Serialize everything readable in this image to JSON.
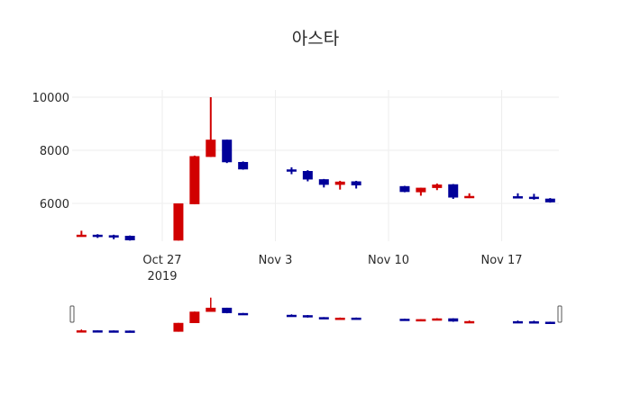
{
  "title": "아스타",
  "colors": {
    "increasing": "#d10000",
    "decreasing": "#000099",
    "grid": "#eeeeee",
    "background": "#ffffff"
  },
  "chart_data": {
    "type": "candlestick",
    "title": "아스타",
    "xlabel": "",
    "ylabel": "",
    "ylim": [
      4570,
      10000
    ],
    "y_ticks": [
      6000,
      8000,
      10000
    ],
    "x_ticks": [
      {
        "label": "Oct 27",
        "sublabel": "2019",
        "date": "2019-10-27"
      },
      {
        "label": "Nov 3",
        "date": "2019-11-03"
      },
      {
        "label": "Nov 10",
        "date": "2019-11-10"
      },
      {
        "label": "Nov 17",
        "date": "2019-11-17"
      }
    ],
    "grid": true,
    "rangeslider": true,
    "x": [
      "2019-10-22",
      "2019-10-23",
      "2019-10-24",
      "2019-10-25",
      "2019-10-28",
      "2019-10-29",
      "2019-10-30",
      "2019-10-31",
      "2019-11-01",
      "2019-11-04",
      "2019-11-05",
      "2019-11-06",
      "2019-11-07",
      "2019-11-08",
      "2019-11-11",
      "2019-11-12",
      "2019-11-13",
      "2019-11-14",
      "2019-11-15",
      "2019-11-18",
      "2019-11-19",
      "2019-11-20"
    ],
    "open": [
      4790,
      4820,
      4800,
      4780,
      4600,
      5970,
      7750,
      8400,
      7560,
      7280,
      7220,
      6910,
      6700,
      6830,
      6650,
      6420,
      6580,
      6720,
      6240,
      6270,
      6250,
      6180
    ],
    "high": [
      4970,
      4840,
      4820,
      4790,
      6000,
      7800,
      10000,
      8400,
      7580,
      7360,
      7250,
      6920,
      6850,
      6850,
      6660,
      6590,
      6750,
      6730,
      6380,
      6380,
      6360,
      6200
    ],
    "low": [
      4760,
      4700,
      4650,
      4600,
      4600,
      5970,
      7750,
      7520,
      7270,
      7100,
      6830,
      6600,
      6520,
      6560,
      6420,
      6290,
      6500,
      6170,
      6200,
      6200,
      6140,
      6030
    ],
    "close": [
      4820,
      4770,
      4770,
      4610,
      6000,
      7780,
      8400,
      7550,
      7280,
      7220,
      6900,
      6700,
      6820,
      6680,
      6430,
      6590,
      6710,
      6220,
      6280,
      6220,
      6170,
      6040
    ]
  }
}
